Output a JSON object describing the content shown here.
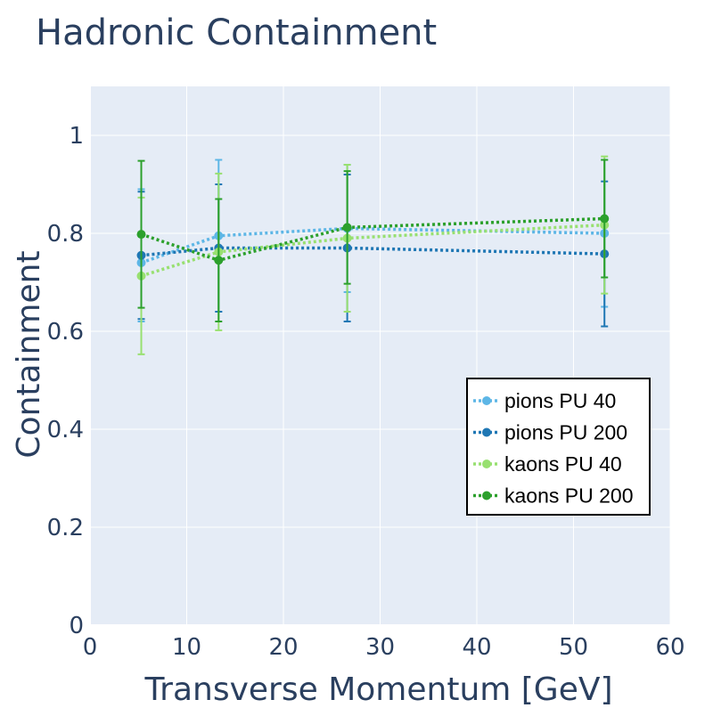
{
  "chart_data": {
    "type": "line",
    "title": "Hadronic Containment",
    "xlabel": "Transverse Momentum [GeV]",
    "ylabel": "Containment",
    "xlim": [
      0,
      60
    ],
    "ylim": [
      0,
      1.1
    ],
    "x_ticks": [
      0,
      10,
      20,
      30,
      40,
      50,
      60
    ],
    "y_ticks": [
      0,
      0.2,
      0.4,
      0.6,
      0.8,
      1
    ],
    "x_tick_labels": [
      "0",
      "10",
      "20",
      "30",
      "40",
      "50",
      "60"
    ],
    "y_tick_labels": [
      "0",
      "0.2",
      "0.4",
      "0.6",
      "0.8",
      "1"
    ],
    "grid": true,
    "legend_position": "right",
    "series": [
      {
        "name": "pions PU 40",
        "color": "#5db6e6",
        "x": [
          5.3,
          13.3,
          26.6,
          53.2
        ],
        "y": [
          0.74,
          0.795,
          0.81,
          0.8
        ],
        "err_low": [
          0.12,
          0.155,
          0.13,
          0.15
        ],
        "err_high": [
          0.15,
          0.155,
          0.13,
          0.15
        ]
      },
      {
        "name": "pions PU 200",
        "color": "#1f77b4",
        "x": [
          5.3,
          13.3,
          26.6,
          53.2
        ],
        "y": [
          0.755,
          0.77,
          0.77,
          0.758
        ],
        "err_low": [
          0.13,
          0.13,
          0.15,
          0.148
        ],
        "err_high": [
          0.13,
          0.13,
          0.15,
          0.148
        ]
      },
      {
        "name": "kaons PU 40",
        "color": "#98e070",
        "x": [
          5.3,
          13.3,
          26.6,
          53.2
        ],
        "y": [
          0.713,
          0.762,
          0.79,
          0.817
        ],
        "err_low": [
          0.16,
          0.16,
          0.15,
          0.14
        ],
        "err_high": [
          0.16,
          0.16,
          0.15,
          0.14
        ]
      },
      {
        "name": "kaons PU 200",
        "color": "#2ca02c",
        "x": [
          5.3,
          13.3,
          26.6,
          53.2
        ],
        "y": [
          0.798,
          0.745,
          0.812,
          0.83
        ],
        "err_low": [
          0.15,
          0.125,
          0.115,
          0.12
        ],
        "err_high": [
          0.15,
          0.125,
          0.115,
          0.12
        ]
      }
    ]
  }
}
